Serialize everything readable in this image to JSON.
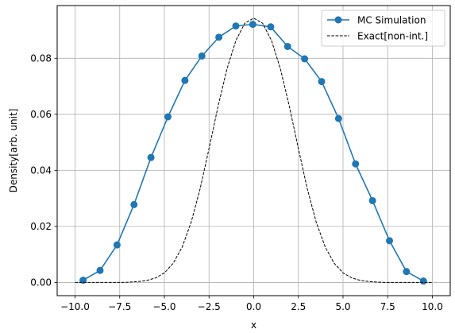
{
  "chart_data": {
    "type": "line",
    "title": "",
    "xlabel": "x",
    "ylabel": "Density[arb. unit]",
    "xlim": [
      -11.0,
      11.0
    ],
    "ylim": [
      -0.0047,
      0.0988
    ],
    "grid": true,
    "legend_placement": "top-right",
    "x_ticks": [
      -10.0,
      -7.5,
      -5.0,
      -2.5,
      0.0,
      2.5,
      5.0,
      7.5,
      10.0
    ],
    "x_tick_labels": [
      "−10.0",
      "−7.5",
      "−5.0",
      "−2.5",
      "0.0",
      "2.5",
      "5.0",
      "7.5",
      "10.0"
    ],
    "y_ticks": [
      0.0,
      0.02,
      0.04,
      0.06,
      0.08
    ],
    "y_tick_labels": [
      "0.00",
      "0.02",
      "0.04",
      "0.06",
      "0.08"
    ],
    "series": [
      {
        "name": "MC Simulation",
        "style": "line-markers",
        "color": "#1f77b4",
        "x": [
          -9.55,
          -8.6,
          -7.65,
          -6.7,
          -5.75,
          -4.8,
          -3.85,
          -2.9,
          -1.95,
          -1.0,
          -0.05,
          0.95,
          1.9,
          2.85,
          3.8,
          4.75,
          5.7,
          6.65,
          7.6,
          8.55,
          9.5
        ],
        "y": [
          0.0008,
          0.0043,
          0.0134,
          0.0278,
          0.0446,
          0.0591,
          0.0721,
          0.0808,
          0.0875,
          0.0915,
          0.0921,
          0.0912,
          0.0842,
          0.0798,
          0.0717,
          0.0585,
          0.0423,
          0.0292,
          0.0149,
          0.0039,
          0.0005
        ]
      },
      {
        "name": "Exact[non-int.]",
        "style": "dashed",
        "color": "#000000",
        "x": [
          -10.0,
          -9.5,
          -9.0,
          -8.5,
          -8.0,
          -7.5,
          -7.0,
          -6.5,
          -6.0,
          -5.5,
          -5.0,
          -4.5,
          -4.0,
          -3.5,
          -3.0,
          -2.5,
          -2.0,
          -1.5,
          -1.0,
          -0.5,
          0.0,
          0.5,
          1.0,
          1.5,
          2.0,
          2.5,
          3.0,
          3.5,
          4.0,
          4.5,
          5.0,
          5.5,
          6.0,
          6.5,
          7.0,
          7.5,
          8.0,
          8.5,
          9.0,
          9.5,
          10.0
        ],
        "y": [
          0.0,
          0.0,
          0.0,
          0.0,
          0.0,
          0.0,
          0.0001,
          0.0003,
          0.0007,
          0.0016,
          0.0034,
          0.0069,
          0.0127,
          0.0215,
          0.0334,
          0.0478,
          0.0627,
          0.0761,
          0.0863,
          0.0925,
          0.0943,
          0.0925,
          0.0863,
          0.0761,
          0.0627,
          0.0478,
          0.0334,
          0.0215,
          0.0127,
          0.0069,
          0.0034,
          0.0016,
          0.0007,
          0.0003,
          0.0001,
          0.0,
          0.0,
          0.0,
          0.0,
          0.0,
          0.0
        ]
      }
    ]
  }
}
